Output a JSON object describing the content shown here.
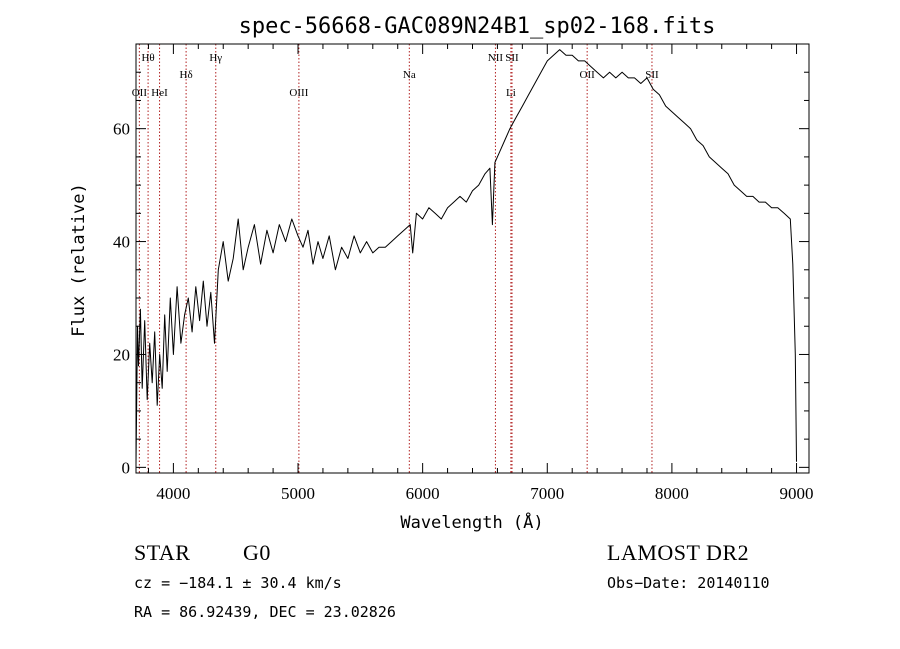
{
  "chart_data": {
    "type": "line",
    "title": "spec-56668-GAC089N24B1_sp02-168.fits",
    "xlabel": "Wavelength (Å)",
    "ylabel": "Flux (relative)",
    "xlim": [
      3700,
      9100
    ],
    "ylim": [
      -1,
      75
    ],
    "x_ticks": [
      4000,
      5000,
      6000,
      7000,
      8000,
      9000
    ],
    "y_ticks": [
      0,
      20,
      40,
      60
    ],
    "grid": false,
    "series": [
      {
        "color": "#000000",
        "points": [
          [
            3700,
            0.5
          ],
          [
            3705,
            10
          ],
          [
            3712,
            25
          ],
          [
            3720,
            18
          ],
          [
            3735,
            28
          ],
          [
            3750,
            14
          ],
          [
            3770,
            26
          ],
          [
            3790,
            12
          ],
          [
            3810,
            22
          ],
          [
            3830,
            15
          ],
          [
            3850,
            24
          ],
          [
            3870,
            11
          ],
          [
            3890,
            20
          ],
          [
            3910,
            14
          ],
          [
            3930,
            27
          ],
          [
            3950,
            17
          ],
          [
            3975,
            30
          ],
          [
            4000,
            20
          ],
          [
            4030,
            32
          ],
          [
            4060,
            22
          ],
          [
            4090,
            27
          ],
          [
            4120,
            30
          ],
          [
            4150,
            24
          ],
          [
            4180,
            32
          ],
          [
            4210,
            26
          ],
          [
            4240,
            33
          ],
          [
            4270,
            25
          ],
          [
            4300,
            31
          ],
          [
            4330,
            22
          ],
          [
            4360,
            35
          ],
          [
            4400,
            40
          ],
          [
            4440,
            33
          ],
          [
            4480,
            37
          ],
          [
            4520,
            44
          ],
          [
            4560,
            35
          ],
          [
            4600,
            39
          ],
          [
            4650,
            43
          ],
          [
            4700,
            36
          ],
          [
            4750,
            42
          ],
          [
            4800,
            38
          ],
          [
            4850,
            43
          ],
          [
            4900,
            40
          ],
          [
            4950,
            44
          ],
          [
            5000,
            41
          ],
          [
            5040,
            39
          ],
          [
            5080,
            42
          ],
          [
            5120,
            36
          ],
          [
            5160,
            40
          ],
          [
            5200,
            37
          ],
          [
            5250,
            41
          ],
          [
            5300,
            35
          ],
          [
            5350,
            39
          ],
          [
            5400,
            37
          ],
          [
            5450,
            41
          ],
          [
            5500,
            38
          ],
          [
            5550,
            40
          ],
          [
            5600,
            38
          ],
          [
            5650,
            39
          ],
          [
            5700,
            39
          ],
          [
            5750,
            40
          ],
          [
            5800,
            41
          ],
          [
            5850,
            42
          ],
          [
            5900,
            43
          ],
          [
            5920,
            38
          ],
          [
            5950,
            45
          ],
          [
            6000,
            44
          ],
          [
            6050,
            46
          ],
          [
            6100,
            45
          ],
          [
            6150,
            44
          ],
          [
            6200,
            46
          ],
          [
            6250,
            47
          ],
          [
            6300,
            48
          ],
          [
            6350,
            47
          ],
          [
            6400,
            49
          ],
          [
            6450,
            50
          ],
          [
            6500,
            52
          ],
          [
            6540,
            53
          ],
          [
            6560,
            43
          ],
          [
            6580,
            54
          ],
          [
            6620,
            56
          ],
          [
            6660,
            58
          ],
          [
            6700,
            60
          ],
          [
            6750,
            62
          ],
          [
            6800,
            64
          ],
          [
            6850,
            66
          ],
          [
            6900,
            68
          ],
          [
            6950,
            70
          ],
          [
            7000,
            72
          ],
          [
            7050,
            73
          ],
          [
            7100,
            74
          ],
          [
            7150,
            73
          ],
          [
            7200,
            73
          ],
          [
            7250,
            72
          ],
          [
            7300,
            72
          ],
          [
            7350,
            71
          ],
          [
            7400,
            70
          ],
          [
            7450,
            69
          ],
          [
            7500,
            70
          ],
          [
            7550,
            69
          ],
          [
            7600,
            70
          ],
          [
            7650,
            69
          ],
          [
            7700,
            69
          ],
          [
            7750,
            68
          ],
          [
            7800,
            69
          ],
          [
            7850,
            67
          ],
          [
            7900,
            66
          ],
          [
            7950,
            64
          ],
          [
            8000,
            63
          ],
          [
            8050,
            62
          ],
          [
            8100,
            61
          ],
          [
            8150,
            60
          ],
          [
            8200,
            58
          ],
          [
            8250,
            57
          ],
          [
            8300,
            55
          ],
          [
            8350,
            54
          ],
          [
            8400,
            53
          ],
          [
            8450,
            52
          ],
          [
            8500,
            50
          ],
          [
            8550,
            49
          ],
          [
            8600,
            48
          ],
          [
            8650,
            48
          ],
          [
            8700,
            47
          ],
          [
            8750,
            47
          ],
          [
            8800,
            46
          ],
          [
            8850,
            46
          ],
          [
            8900,
            45
          ],
          [
            8950,
            44
          ],
          [
            8970,
            36
          ],
          [
            8990,
            20
          ],
          [
            9000,
            1
          ]
        ]
      }
    ],
    "line_markers": [
      {
        "label": "Hθ",
        "x": 3797,
        "row": 1
      },
      {
        "label": "OII",
        "x": 3727,
        "row": 3
      },
      {
        "label": "HeI",
        "x": 3889,
        "row": 3
      },
      {
        "label": "Hδ",
        "x": 4102,
        "row": 2
      },
      {
        "label": "Hγ",
        "x": 4340,
        "row": 1
      },
      {
        "label": "OIII",
        "x": 5007,
        "row": 3
      },
      {
        "label": "Na",
        "x": 5893,
        "row": 2
      },
      {
        "label": "NII",
        "x": 6584,
        "row": 1
      },
      {
        "label": "SII",
        "x": 6717,
        "row": 1
      },
      {
        "label": "Li",
        "x": 6708,
        "row": 3
      },
      {
        "label": "OII",
        "x": 7320,
        "row": 2
      },
      {
        "label": "SII",
        "x": 7840,
        "row": 2
      }
    ],
    "marker_color": "#b22222"
  },
  "footer": {
    "object_class": "STAR",
    "subclass": "G0",
    "survey": "LAMOST DR2",
    "redshift": "cz = −184.1 ± 30.4 km/s",
    "obs_date": "Obs−Date: 20140110",
    "coords": "RA =  86.92439, DEC =  23.02826"
  }
}
